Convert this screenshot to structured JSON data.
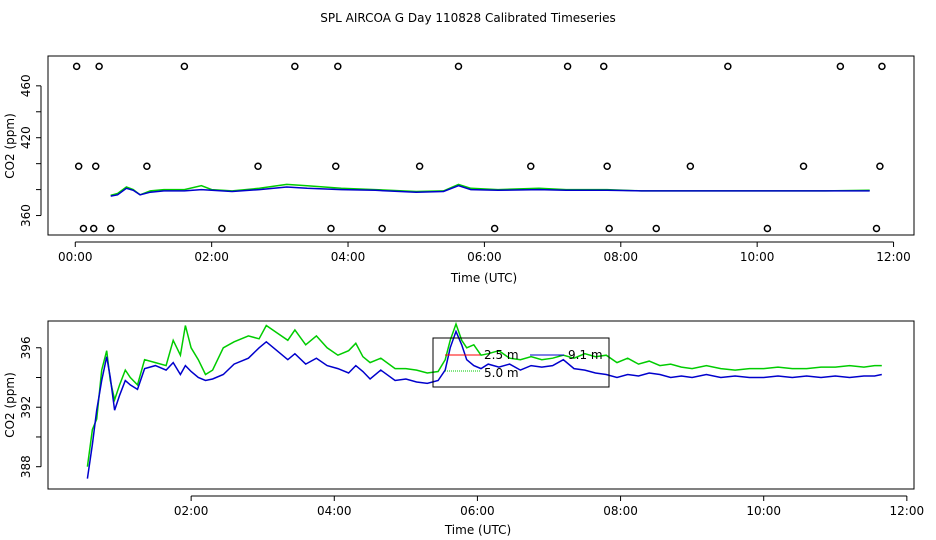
{
  "title": "SPL AIRCOA G  Day 110828  Calibrated Timeseries",
  "chart_data": [
    {
      "type": "line",
      "xlabel": "Time (UTC)",
      "ylabel": "CO2 (ppm)",
      "x_ticks": [
        "00:00",
        "02:00",
        "04:00",
        "06:00",
        "08:00",
        "10:00",
        "12:00"
      ],
      "y_ticks": [
        "360",
        "420",
        "460"
      ],
      "xlim": [
        -0.4,
        12.3
      ],
      "ylim": [
        345,
        483
      ],
      "grid": false,
      "series": [
        {
          "color": "#00cc00",
          "points": [
            [
              0.52,
              375.5
            ],
            [
              0.62,
              377
            ],
            [
              0.75,
              382
            ],
            [
              0.85,
              380
            ],
            [
              0.95,
              376
            ],
            [
              1.1,
              379
            ],
            [
              1.3,
              380
            ],
            [
              1.6,
              380
            ],
            [
              1.85,
              383
            ],
            [
              2.0,
              380
            ],
            [
              2.3,
              379
            ],
            [
              2.7,
              381
            ],
            [
              3.1,
              384
            ],
            [
              3.4,
              383
            ],
            [
              3.9,
              381
            ],
            [
              4.4,
              380
            ],
            [
              5.0,
              378.5
            ],
            [
              5.4,
              379
            ],
            [
              5.62,
              384
            ],
            [
              5.8,
              381
            ],
            [
              6.2,
              380
            ],
            [
              6.8,
              381
            ],
            [
              7.2,
              380
            ],
            [
              7.8,
              380
            ],
            [
              8.3,
              379
            ],
            [
              9.0,
              379
            ],
            [
              10.0,
              379
            ],
            [
              11.0,
              379
            ],
            [
              11.65,
              379.5
            ]
          ]
        },
        {
          "color": "#0000cc",
          "points": [
            [
              0.52,
              375
            ],
            [
              0.62,
              376
            ],
            [
              0.75,
              381
            ],
            [
              0.85,
              379.5
            ],
            [
              0.95,
              376
            ],
            [
              1.1,
              378
            ],
            [
              1.3,
              379
            ],
            [
              1.6,
              379
            ],
            [
              1.85,
              380
            ],
            [
              2.0,
              379.5
            ],
            [
              2.3,
              378.5
            ],
            [
              2.7,
              380
            ],
            [
              3.1,
              382
            ],
            [
              3.4,
              381
            ],
            [
              3.9,
              380
            ],
            [
              4.4,
              379.5
            ],
            [
              5.0,
              378
            ],
            [
              5.4,
              378.5
            ],
            [
              5.62,
              383
            ],
            [
              5.8,
              380
            ],
            [
              6.2,
              379.5
            ],
            [
              6.8,
              380
            ],
            [
              7.2,
              379.5
            ],
            [
              7.8,
              379.5
            ],
            [
              8.3,
              379
            ],
            [
              9.0,
              379
            ],
            [
              10.0,
              379
            ],
            [
              11.0,
              379
            ],
            [
              11.65,
              379
            ]
          ]
        }
      ],
      "cal_points": [
        {
          "x": 0.02,
          "y": 475
        },
        {
          "x": 0.35,
          "y": 475
        },
        {
          "x": 1.6,
          "y": 475
        },
        {
          "x": 3.22,
          "y": 475
        },
        {
          "x": 3.85,
          "y": 475
        },
        {
          "x": 5.62,
          "y": 475
        },
        {
          "x": 7.22,
          "y": 475
        },
        {
          "x": 7.75,
          "y": 475
        },
        {
          "x": 9.57,
          "y": 475
        },
        {
          "x": 11.22,
          "y": 475
        },
        {
          "x": 11.83,
          "y": 475
        },
        {
          "x": 0.05,
          "y": 398
        },
        {
          "x": 0.3,
          "y": 398
        },
        {
          "x": 1.05,
          "y": 398
        },
        {
          "x": 2.68,
          "y": 398
        },
        {
          "x": 3.82,
          "y": 398
        },
        {
          "x": 5.05,
          "y": 398
        },
        {
          "x": 6.68,
          "y": 398
        },
        {
          "x": 7.8,
          "y": 398
        },
        {
          "x": 9.02,
          "y": 398
        },
        {
          "x": 10.68,
          "y": 398
        },
        {
          "x": 11.8,
          "y": 398
        },
        {
          "x": 0.12,
          "y": 350
        },
        {
          "x": 0.27,
          "y": 350
        },
        {
          "x": 0.52,
          "y": 350
        },
        {
          "x": 2.15,
          "y": 350
        },
        {
          "x": 3.75,
          "y": 350
        },
        {
          "x": 4.5,
          "y": 350
        },
        {
          "x": 6.15,
          "y": 350
        },
        {
          "x": 7.83,
          "y": 350
        },
        {
          "x": 8.52,
          "y": 350
        },
        {
          "x": 10.15,
          "y": 350
        },
        {
          "x": 11.75,
          "y": 350
        }
      ]
    },
    {
      "type": "line",
      "xlabel": "Time (UTC)",
      "ylabel": "CO2 (ppm)",
      "x_ticks": [
        "02:00",
        "04:00",
        "06:00",
        "08:00",
        "10:00",
        "12:00"
      ],
      "y_ticks": [
        "388",
        "392",
        "396"
      ],
      "xlim": [
        0.0,
        12.1
      ],
      "ylim": [
        386.5,
        397.8
      ],
      "grid": false,
      "legend": {
        "placement": "top-center",
        "entries": [
          {
            "name": "2.5 m",
            "color": "#ff0000"
          },
          {
            "name": "9.1 m",
            "color": "#0000cc"
          },
          {
            "name": "5.0 m",
            "color": "#00cc00"
          }
        ]
      },
      "series": [
        {
          "name": "5.0 m",
          "color": "#00cc00",
          "points": [
            [
              0.55,
              388.0
            ],
            [
              0.62,
              390.5
            ],
            [
              0.68,
              391.2
            ],
            [
              0.75,
              394.5
            ],
            [
              0.82,
              395.8
            ],
            [
              0.87,
              393.8
            ],
            [
              0.93,
              392.5
            ],
            [
              1.0,
              393.5
            ],
            [
              1.08,
              394.5
            ],
            [
              1.15,
              394.0
            ],
            [
              1.25,
              393.5
            ],
            [
              1.35,
              395.2
            ],
            [
              1.5,
              395.0
            ],
            [
              1.65,
              394.8
            ],
            [
              1.75,
              396.5
            ],
            [
              1.85,
              395.5
            ],
            [
              1.92,
              397.5
            ],
            [
              2.0,
              396.0
            ],
            [
              2.1,
              395.2
            ],
            [
              2.2,
              394.2
            ],
            [
              2.3,
              394.5
            ],
            [
              2.45,
              396.0
            ],
            [
              2.6,
              396.4
            ],
            [
              2.8,
              396.8
            ],
            [
              2.95,
              396.6
            ],
            [
              3.05,
              397.5
            ],
            [
              3.2,
              397.0
            ],
            [
              3.35,
              396.5
            ],
            [
              3.45,
              397.2
            ],
            [
              3.6,
              396.2
            ],
            [
              3.75,
              396.8
            ],
            [
              3.9,
              396.0
            ],
            [
              4.05,
              395.5
            ],
            [
              4.2,
              395.8
            ],
            [
              4.3,
              396.3
            ],
            [
              4.4,
              395.4
            ],
            [
              4.5,
              395.0
            ],
            [
              4.65,
              395.3
            ],
            [
              4.85,
              394.6
            ],
            [
              5.0,
              394.6
            ],
            [
              5.15,
              394.5
            ],
            [
              5.3,
              394.3
            ],
            [
              5.45,
              394.4
            ],
            [
              5.55,
              395.2
            ],
            [
              5.62,
              396.5
            ],
            [
              5.7,
              397.6
            ],
            [
              5.78,
              396.5
            ],
            [
              5.85,
              396.0
            ],
            [
              5.95,
              396.2
            ],
            [
              6.05,
              395.5
            ],
            [
              6.15,
              395.6
            ],
            [
              6.3,
              395.8
            ],
            [
              6.45,
              395.3
            ],
            [
              6.6,
              395.2
            ],
            [
              6.75,
              395.4
            ],
            [
              6.9,
              395.2
            ],
            [
              7.05,
              395.3
            ],
            [
              7.2,
              395.5
            ],
            [
              7.35,
              395.3
            ],
            [
              7.5,
              395.6
            ],
            [
              7.65,
              395.4
            ],
            [
              7.8,
              395.5
            ],
            [
              7.95,
              395.0
            ],
            [
              8.1,
              395.3
            ],
            [
              8.25,
              394.9
            ],
            [
              8.4,
              395.1
            ],
            [
              8.55,
              394.8
            ],
            [
              8.7,
              394.9
            ],
            [
              8.85,
              394.7
            ],
            [
              9.0,
              394.6
            ],
            [
              9.2,
              394.8
            ],
            [
              9.4,
              394.6
            ],
            [
              9.6,
              394.5
            ],
            [
              9.8,
              394.6
            ],
            [
              10.0,
              394.6
            ],
            [
              10.2,
              394.7
            ],
            [
              10.4,
              394.6
            ],
            [
              10.6,
              394.6
            ],
            [
              10.8,
              394.7
            ],
            [
              11.0,
              394.7
            ],
            [
              11.2,
              394.8
            ],
            [
              11.4,
              394.7
            ],
            [
              11.55,
              394.8
            ],
            [
              11.65,
              394.8
            ]
          ]
        },
        {
          "name": "9.1 m",
          "color": "#0000cc",
          "points": [
            [
              0.55,
              387.2
            ],
            [
              0.62,
              389.5
            ],
            [
              0.68,
              391.8
            ],
            [
              0.75,
              393.8
            ],
            [
              0.82,
              395.4
            ],
            [
              0.87,
              394.0
            ],
            [
              0.93,
              391.8
            ],
            [
              1.0,
              392.8
            ],
            [
              1.08,
              393.8
            ],
            [
              1.15,
              393.5
            ],
            [
              1.25,
              393.2
            ],
            [
              1.35,
              394.6
            ],
            [
              1.5,
              394.8
            ],
            [
              1.65,
              394.5
            ],
            [
              1.75,
              395.0
            ],
            [
              1.85,
              394.2
            ],
            [
              1.92,
              394.8
            ],
            [
              2.0,
              394.4
            ],
            [
              2.1,
              394.0
            ],
            [
              2.2,
              393.8
            ],
            [
              2.3,
              393.9
            ],
            [
              2.45,
              394.2
            ],
            [
              2.6,
              394.9
            ],
            [
              2.8,
              395.3
            ],
            [
              2.95,
              396.0
            ],
            [
              3.05,
              396.4
            ],
            [
              3.2,
              395.8
            ],
            [
              3.35,
              395.2
            ],
            [
              3.45,
              395.6
            ],
            [
              3.6,
              394.9
            ],
            [
              3.75,
              395.3
            ],
            [
              3.9,
              394.8
            ],
            [
              4.05,
              394.6
            ],
            [
              4.2,
              394.3
            ],
            [
              4.3,
              394.8
            ],
            [
              4.4,
              394.4
            ],
            [
              4.5,
              393.9
            ],
            [
              4.65,
              394.5
            ],
            [
              4.85,
              393.8
            ],
            [
              5.0,
              393.9
            ],
            [
              5.15,
              393.7
            ],
            [
              5.3,
              393.6
            ],
            [
              5.45,
              393.8
            ],
            [
              5.55,
              394.5
            ],
            [
              5.62,
              396.0
            ],
            [
              5.7,
              397.1
            ],
            [
              5.78,
              396.2
            ],
            [
              5.85,
              395.2
            ],
            [
              5.95,
              394.8
            ],
            [
              6.05,
              394.6
            ],
            [
              6.15,
              394.9
            ],
            [
              6.3,
              394.7
            ],
            [
              6.45,
              394.9
            ],
            [
              6.6,
              394.5
            ],
            [
              6.75,
              394.8
            ],
            [
              6.9,
              394.7
            ],
            [
              7.05,
              394.8
            ],
            [
              7.2,
              395.2
            ],
            [
              7.35,
              394.6
            ],
            [
              7.5,
              394.5
            ],
            [
              7.65,
              394.3
            ],
            [
              7.8,
              394.2
            ],
            [
              7.95,
              394.0
            ],
            [
              8.1,
              394.2
            ],
            [
              8.25,
              394.1
            ],
            [
              8.4,
              394.3
            ],
            [
              8.55,
              394.2
            ],
            [
              8.7,
              394.0
            ],
            [
              8.85,
              394.1
            ],
            [
              9.0,
              394.0
            ],
            [
              9.2,
              394.2
            ],
            [
              9.4,
              394.0
            ],
            [
              9.6,
              394.1
            ],
            [
              9.8,
              394.0
            ],
            [
              10.0,
              394.0
            ],
            [
              10.2,
              394.1
            ],
            [
              10.4,
              394.0
            ],
            [
              10.6,
              394.1
            ],
            [
              10.8,
              394.0
            ],
            [
              11.0,
              394.1
            ],
            [
              11.2,
              394.0
            ],
            [
              11.4,
              394.1
            ],
            [
              11.55,
              394.1
            ],
            [
              11.65,
              394.2
            ]
          ]
        }
      ]
    }
  ]
}
